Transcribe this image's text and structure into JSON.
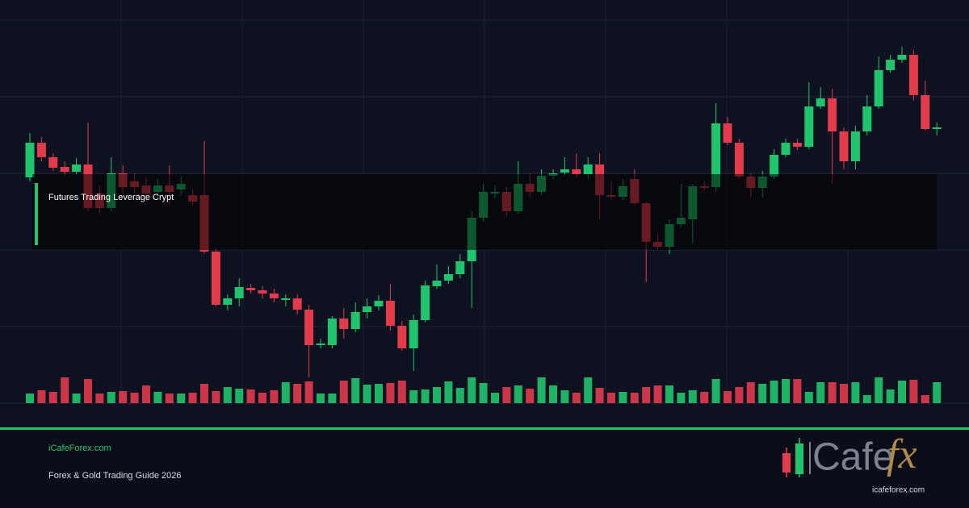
{
  "chart_data": {
    "type": "candlestick",
    "open": [
      380,
      423,
      405,
      393,
      387,
      396,
      360,
      342,
      385,
      375,
      370,
      362,
      370,
      365,
      358,
      358,
      288,
      222,
      230,
      243,
      240,
      236,
      228,
      230,
      216,
      172,
      172,
      205,
      192,
      213,
      220,
      227,
      196,
      168,
      203,
      245,
      252,
      260,
      276,
      330,
      360,
      362,
      338,
      372,
      362,
      382,
      386,
      390,
      384,
      396,
      358,
      356,
      378,
      348,
      300,
      294,
      322,
      328,
      369,
      368,
      447,
      423,
      381,
      367,
      381,
      408,
      423,
      418,
      468,
      478,
      437,
      400,
      437,
      468,
      513,
      526,
      532,
      482,
      440
    ],
    "high": [
      435,
      430,
      410,
      400,
      404,
      448,
      370,
      405,
      395,
      385,
      380,
      378,
      395,
      382,
      365,
      425,
      292,
      235,
      255,
      248,
      245,
      242,
      235,
      235,
      222,
      180,
      208,
      218,
      225,
      230,
      234,
      248,
      202,
      210,
      252,
      272,
      270,
      285,
      338,
      372,
      370,
      368,
      400,
      385,
      390,
      390,
      405,
      410,
      405,
      410,
      375,
      378,
      390,
      350,
      310,
      328,
      372,
      372,
      375,
      472,
      455,
      428,
      385,
      388,
      415,
      428,
      428,
      498,
      492,
      490,
      442,
      444,
      482,
      530,
      532,
      542,
      538,
      500,
      448
    ],
    "low": [
      375,
      400,
      388,
      382,
      384,
      338,
      335,
      338,
      360,
      360,
      350,
      355,
      345,
      358,
      345,
      285,
      220,
      215,
      220,
      236,
      230,
      225,
      220,
      210,
      132,
      168,
      168,
      180,
      188,
      205,
      215,
      190,
      165,
      140,
      200,
      242,
      248,
      255,
      218,
      325,
      355,
      332,
      335,
      355,
      358,
      378,
      382,
      380,
      378,
      328,
      352,
      352,
      345,
      250,
      290,
      285,
      318,
      298,
      364,
      362,
      420,
      378,
      355,
      355,
      378,
      405,
      414,
      415,
      465,
      372,
      390,
      390,
      432,
      465,
      510,
      522,
      475,
      438,
      432
    ],
    "close": [
      423,
      405,
      392,
      387,
      396,
      342,
      342,
      385,
      368,
      368,
      360,
      370,
      362,
      372,
      350,
      288,
      222,
      230,
      244,
      240,
      236,
      230,
      230,
      216,
      172,
      174,
      205,
      192,
      213,
      220,
      227,
      196,
      168,
      203,
      246,
      252,
      260,
      276,
      330,
      362,
      362,
      338,
      372,
      362,
      382,
      385,
      390,
      384,
      396,
      358,
      356,
      369,
      348,
      300,
      294,
      322,
      330,
      369,
      367,
      447,
      423,
      381,
      367,
      381,
      408,
      423,
      418,
      468,
      478,
      437,
      400,
      437,
      468,
      513,
      526,
      532,
      482,
      440,
      442
    ],
    "volume": [
      12,
      16,
      14,
      32,
      12,
      30,
      12,
      14,
      15,
      13,
      22,
      14,
      12,
      12,
      13,
      24,
      15,
      20,
      18,
      17,
      13,
      16,
      26,
      24,
      27,
      12,
      12,
      28,
      31,
      23,
      24,
      25,
      28,
      16,
      17,
      20,
      27,
      19,
      32,
      25,
      13,
      20,
      22,
      18,
      32,
      22,
      16,
      13,
      32,
      19,
      13,
      14,
      13,
      20,
      22,
      22,
      13,
      16,
      14,
      30,
      15,
      20,
      26,
      24,
      28,
      30,
      30,
      14,
      26,
      26,
      24,
      26,
      10,
      32,
      17,
      28,
      29,
      10,
      26
    ],
    "up_color": "#1fc46c",
    "down_color": "#e23b4c"
  },
  "banner": {
    "headline": "Futures Trading Leverage Crypt"
  },
  "footer": {
    "site": "iCafeForex.com",
    "subtitle": "Forex & Gold Trading Guide 2026"
  },
  "logo": {
    "word": "Cafe",
    "mark": "fx",
    "url": "icafeforex.com"
  }
}
